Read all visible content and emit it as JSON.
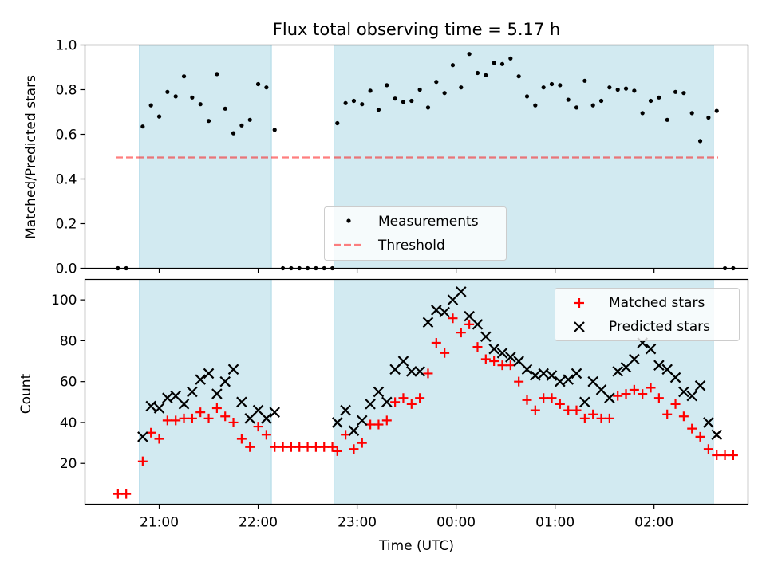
{
  "chart_data": [
    {
      "type": "scatter",
      "title": "Flux total observing time = 5.17 h",
      "xlabel": "",
      "ylabel": "Matched/Predicted stars",
      "ylim": [
        0,
        1.0
      ],
      "yticks": [
        "0.0",
        "0.2",
        "0.4",
        "0.6",
        "0.8",
        "1.0"
      ],
      "threshold": 0.5,
      "legend": {
        "position": "lower-center",
        "entries": [
          "Measurements",
          "Threshold"
        ]
      },
      "grid": false,
      "series": [
        {
          "name": "Measurements",
          "points": [
            [
              "20:35",
              0.0
            ],
            [
              "20:40",
              0.0
            ],
            [
              "20:50",
              0.635
            ],
            [
              "20:55",
              0.73
            ],
            [
              "21:00",
              0.68
            ],
            [
              "21:05",
              0.79
            ],
            [
              "21:10",
              0.77
            ],
            [
              "21:15",
              0.86
            ],
            [
              "21:20",
              0.765
            ],
            [
              "21:25",
              0.735
            ],
            [
              "21:30",
              0.66
            ],
            [
              "21:35",
              0.87
            ],
            [
              "21:40",
              0.715
            ],
            [
              "21:45",
              0.605
            ],
            [
              "21:50",
              0.64
            ],
            [
              "21:55",
              0.665
            ],
            [
              "22:00",
              0.825
            ],
            [
              "22:05",
              0.81
            ],
            [
              "22:10",
              0.62
            ],
            [
              "22:15",
              0.0
            ],
            [
              "22:20",
              0.0
            ],
            [
              "22:25",
              0.0
            ],
            [
              "22:30",
              0.0
            ],
            [
              "22:35",
              0.0
            ],
            [
              "22:40",
              0.0
            ],
            [
              "22:45",
              0.0
            ],
            [
              "22:48",
              0.65
            ],
            [
              "22:53",
              0.74
            ],
            [
              "22:58",
              0.75
            ],
            [
              "23:03",
              0.735
            ],
            [
              "23:08",
              0.795
            ],
            [
              "23:13",
              0.71
            ],
            [
              "23:18",
              0.82
            ],
            [
              "23:23",
              0.76
            ],
            [
              "23:28",
              0.745
            ],
            [
              "23:33",
              0.75
            ],
            [
              "23:38",
              0.8
            ],
            [
              "23:43",
              0.72
            ],
            [
              "23:48",
              0.835
            ],
            [
              "23:53",
              0.785
            ],
            [
              "23:58",
              0.91
            ],
            [
              "00:03",
              0.81
            ],
            [
              "00:08",
              0.96
            ],
            [
              "00:13",
              0.875
            ],
            [
              "00:18",
              0.865
            ],
            [
              "00:23",
              0.92
            ],
            [
              "00:28",
              0.915
            ],
            [
              "00:33",
              0.94
            ],
            [
              "00:38",
              0.86
            ],
            [
              "00:43",
              0.77
            ],
            [
              "00:48",
              0.73
            ],
            [
              "00:53",
              0.81
            ],
            [
              "00:58",
              0.825
            ],
            [
              "01:03",
              0.82
            ],
            [
              "01:08",
              0.755
            ],
            [
              "01:13",
              0.72
            ],
            [
              "01:18",
              0.84
            ],
            [
              "01:23",
              0.73
            ],
            [
              "01:28",
              0.75
            ],
            [
              "01:33",
              0.81
            ],
            [
              "01:38",
              0.8
            ],
            [
              "01:43",
              0.805
            ],
            [
              "01:48",
              0.795
            ],
            [
              "01:53",
              0.695
            ],
            [
              "01:58",
              0.75
            ],
            [
              "02:03",
              0.765
            ],
            [
              "02:08",
              0.665
            ],
            [
              "02:13",
              0.79
            ],
            [
              "02:18",
              0.785
            ],
            [
              "02:23",
              0.695
            ],
            [
              "02:28",
              0.57
            ],
            [
              "02:33",
              0.675
            ],
            [
              "02:38",
              0.705
            ],
            [
              "02:43",
              0.0
            ],
            [
              "02:48",
              0.0
            ]
          ]
        }
      ]
    },
    {
      "type": "scatter",
      "title": "",
      "xlabel": "Time (UTC)",
      "ylabel": "Count",
      "ylim": [
        0,
        110
      ],
      "yticks": [
        "20",
        "40",
        "60",
        "80",
        "100"
      ],
      "xticks": [
        "21:00",
        "22:00",
        "23:00",
        "00:00",
        "01:00",
        "02:00"
      ],
      "legend": {
        "position": "top-right",
        "entries": [
          "Matched stars",
          "Predicted stars"
        ]
      },
      "grid": false,
      "series": [
        {
          "name": "Matched stars",
          "points": [
            [
              "20:35",
              5
            ],
            [
              "20:40",
              5
            ],
            [
              "20:50",
              21
            ],
            [
              "20:55",
              35
            ],
            [
              "21:00",
              32
            ],
            [
              "21:05",
              41
            ],
            [
              "21:10",
              41
            ],
            [
              "21:15",
              42
            ],
            [
              "21:20",
              42
            ],
            [
              "21:25",
              45
            ],
            [
              "21:30",
              42
            ],
            [
              "21:35",
              47
            ],
            [
              "21:40",
              43
            ],
            [
              "21:45",
              40
            ],
            [
              "21:50",
              32
            ],
            [
              "21:55",
              28
            ],
            [
              "22:00",
              38
            ],
            [
              "22:05",
              34
            ],
            [
              "22:10",
              28
            ],
            [
              "22:15",
              28
            ],
            [
              "22:20",
              28
            ],
            [
              "22:25",
              28
            ],
            [
              "22:30",
              28
            ],
            [
              "22:35",
              28
            ],
            [
              "22:40",
              28
            ],
            [
              "22:45",
              28
            ],
            [
              "22:48",
              26
            ],
            [
              "22:53",
              34
            ],
            [
              "22:58",
              27
            ],
            [
              "23:03",
              30
            ],
            [
              "23:08",
              39
            ],
            [
              "23:13",
              39
            ],
            [
              "23:18",
              41
            ],
            [
              "23:23",
              50
            ],
            [
              "23:28",
              52
            ],
            [
              "23:33",
              49
            ],
            [
              "23:38",
              52
            ],
            [
              "23:43",
              64
            ],
            [
              "23:48",
              79
            ],
            [
              "23:53",
              74
            ],
            [
              "23:58",
              91
            ],
            [
              "00:03",
              84
            ],
            [
              "00:08",
              88
            ],
            [
              "00:13",
              77
            ],
            [
              "00:18",
              71
            ],
            [
              "00:23",
              70
            ],
            [
              "00:28",
              68
            ],
            [
              "00:33",
              68
            ],
            [
              "00:38",
              60
            ],
            [
              "00:43",
              51
            ],
            [
              "00:48",
              46
            ],
            [
              "00:53",
              52
            ],
            [
              "00:58",
              52
            ],
            [
              "01:03",
              49
            ],
            [
              "01:08",
              46
            ],
            [
              "01:13",
              46
            ],
            [
              "01:18",
              42
            ],
            [
              "01:23",
              44
            ],
            [
              "01:28",
              42
            ],
            [
              "01:33",
              42
            ],
            [
              "01:38",
              53
            ],
            [
              "01:43",
              54
            ],
            [
              "01:48",
              56
            ],
            [
              "01:53",
              54
            ],
            [
              "01:58",
              57
            ],
            [
              "02:03",
              52
            ],
            [
              "02:08",
              44
            ],
            [
              "02:13",
              49
            ],
            [
              "02:18",
              43
            ],
            [
              "02:23",
              37
            ],
            [
              "02:28",
              33
            ],
            [
              "02:33",
              27
            ],
            [
              "02:38",
              24
            ],
            [
              "02:43",
              24
            ],
            [
              "02:48",
              24
            ]
          ]
        },
        {
          "name": "Predicted stars",
          "points": [
            [
              "20:50",
              33
            ],
            [
              "20:55",
              48
            ],
            [
              "21:00",
              47
            ],
            [
              "21:05",
              52
            ],
            [
              "21:10",
              53
            ],
            [
              "21:15",
              49
            ],
            [
              "21:20",
              55
            ],
            [
              "21:25",
              61
            ],
            [
              "21:30",
              64
            ],
            [
              "21:35",
              54
            ],
            [
              "21:40",
              60
            ],
            [
              "21:45",
              66
            ],
            [
              "21:50",
              50
            ],
            [
              "21:55",
              42
            ],
            [
              "22:00",
              46
            ],
            [
              "22:05",
              42
            ],
            [
              "22:10",
              45
            ],
            [
              "22:48",
              40
            ],
            [
              "22:53",
              46
            ],
            [
              "22:58",
              36
            ],
            [
              "23:03",
              41
            ],
            [
              "23:08",
              49
            ],
            [
              "23:13",
              55
            ],
            [
              "23:18",
              50
            ],
            [
              "23:23",
              66
            ],
            [
              "23:28",
              70
            ],
            [
              "23:33",
              65
            ],
            [
              "23:38",
              65
            ],
            [
              "23:43",
              89
            ],
            [
              "23:48",
              95
            ],
            [
              "23:53",
              94
            ],
            [
              "23:58",
              100
            ],
            [
              "00:03",
              104
            ],
            [
              "00:08",
              92
            ],
            [
              "00:13",
              88
            ],
            [
              "00:18",
              82
            ],
            [
              "00:23",
              76
            ],
            [
              "00:28",
              74
            ],
            [
              "00:33",
              72
            ],
            [
              "00:38",
              70
            ],
            [
              "00:43",
              66
            ],
            [
              "00:48",
              63
            ],
            [
              "00:53",
              64
            ],
            [
              "00:58",
              63
            ],
            [
              "01:03",
              60
            ],
            [
              "01:08",
              61
            ],
            [
              "01:13",
              64
            ],
            [
              "01:18",
              50
            ],
            [
              "01:23",
              60
            ],
            [
              "01:28",
              56
            ],
            [
              "01:33",
              52
            ],
            [
              "01:38",
              65
            ],
            [
              "01:43",
              67
            ],
            [
              "01:48",
              71
            ],
            [
              "01:53",
              79
            ],
            [
              "01:58",
              76
            ],
            [
              "02:03",
              68
            ],
            [
              "02:08",
              66
            ],
            [
              "02:13",
              62
            ],
            [
              "02:18",
              55
            ],
            [
              "02:23",
              53
            ],
            [
              "02:28",
              58
            ],
            [
              "02:33",
              40
            ],
            [
              "02:38",
              34
            ]
          ]
        }
      ]
    }
  ],
  "observing_windows": [
    [
      "20:48",
      "22:08"
    ],
    [
      "22:46",
      "02:36"
    ]
  ],
  "x_range": [
    "20:15",
    "02:57"
  ],
  "colors": {
    "window": "#add8e6",
    "measurements": "#000000",
    "threshold": "#ff0000",
    "matched": "#ff0000",
    "predicted": "#000000"
  }
}
